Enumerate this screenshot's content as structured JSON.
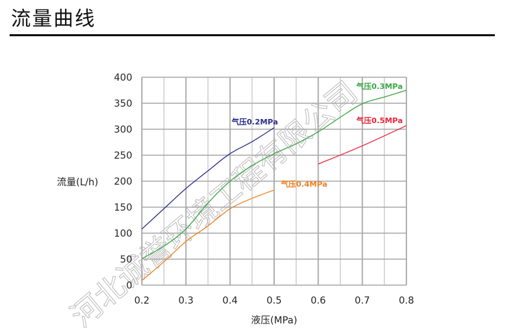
{
  "header": {
    "title": "流量曲线"
  },
  "watermark": "河北诚誉环境工程有限公司",
  "chart_data": {
    "type": "line",
    "xlabel": "液压(MPa)",
    "ylabel": "流量(L/h)",
    "xlim": [
      0.2,
      0.8
    ],
    "ylim": [
      0,
      400
    ],
    "xticks": [
      "0.2",
      "0.3",
      "0.4",
      "0.5",
      "0.6",
      "0.7",
      "0.8"
    ],
    "yticks": [
      "0",
      "50",
      "100",
      "150",
      "200",
      "250",
      "300",
      "350",
      "400"
    ],
    "grid": true,
    "series": [
      {
        "name": "气压0.2MPa",
        "color": "#2e2e8a",
        "x": [
          0.2,
          0.25,
          0.3,
          0.35,
          0.4,
          0.45,
          0.5
        ],
        "y": [
          108,
          147,
          186,
          220,
          253,
          276,
          303
        ]
      },
      {
        "name": "气压0.3MPa",
        "color": "#3aa845",
        "x": [
          0.2,
          0.25,
          0.3,
          0.35,
          0.4,
          0.45,
          0.5,
          0.55,
          0.6,
          0.65,
          0.7,
          0.75,
          0.8
        ],
        "y": [
          51,
          75,
          108,
          158,
          200,
          230,
          253,
          272,
          295,
          323,
          349,
          362,
          375
        ]
      },
      {
        "name": "气压0.4MPa",
        "color": "#f08020",
        "x": [
          0.2,
          0.25,
          0.3,
          0.35,
          0.4,
          0.45,
          0.5
        ],
        "y": [
          9,
          45,
          84,
          114,
          147,
          167,
          183
        ]
      },
      {
        "name": "气压0.5MPa",
        "color": "#e8283c",
        "x": [
          0.6,
          0.7,
          0.8
        ],
        "y": [
          233,
          268,
          307
        ]
      }
    ]
  }
}
